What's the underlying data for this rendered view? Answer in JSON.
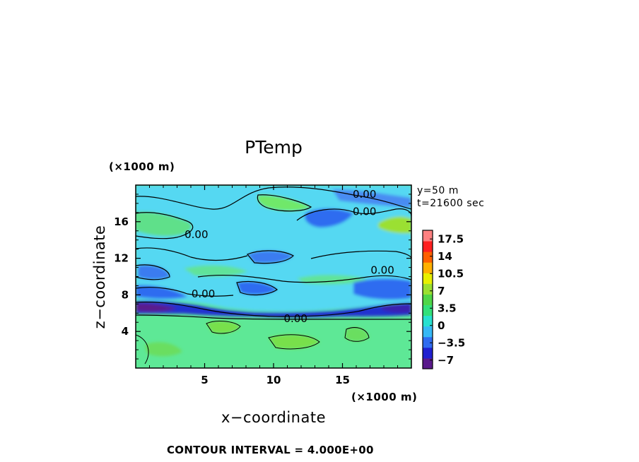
{
  "chart_data": {
    "type": "heatmap",
    "title": "PTemp",
    "xlabel": "x−coordinate",
    "ylabel": "z−coordinate",
    "x_unit": "(×1000 m)",
    "y_unit": "(×1000 m)",
    "xlim": [
      0,
      20
    ],
    "ylim": [
      0,
      20
    ],
    "x_ticks": [
      "5",
      "10",
      "15"
    ],
    "x_tick_values": [
      5,
      10,
      15
    ],
    "y_ticks": [
      "16",
      "12",
      "8",
      "4"
    ],
    "y_tick_values": [
      16,
      12,
      8,
      4
    ],
    "info_lines": [
      "y=50 m",
      "t=21600 sec"
    ],
    "colorbar": {
      "labels": [
        "17.5",
        "14",
        "10.5",
        "7",
        "3.5",
        "0",
        "−3.5",
        "−7"
      ],
      "label_values": [
        17.5,
        14,
        10.5,
        7,
        3.5,
        0,
        -3.5,
        -7
      ],
      "range": [
        -8.75,
        19.25
      ],
      "colors": [
        "#5a1a8c",
        "#2020d0",
        "#2f6cf0",
        "#36b8f5",
        "#28e0d0",
        "#33e07a",
        "#4fd648",
        "#9be030",
        "#e8f000",
        "#ffb000",
        "#ff6000",
        "#ff2020",
        "#ff8080"
      ]
    },
    "contour_labels": [
      {
        "text": "0.00",
        "x": 16.6,
        "y": 19.0
      },
      {
        "text": "0.00",
        "x": 16.6,
        "y": 17.1
      },
      {
        "text": "0.00",
        "x": 4.4,
        "y": 14.6
      },
      {
        "text": "0.00",
        "x": 17.9,
        "y": 10.7
      },
      {
        "text": "0.00",
        "x": 4.9,
        "y": 8.1
      },
      {
        "text": "0.00",
        "x": 11.6,
        "y": 5.4
      }
    ],
    "contour_interval_text": "CONTOUR INTERVAL = 4.000E+00"
  }
}
